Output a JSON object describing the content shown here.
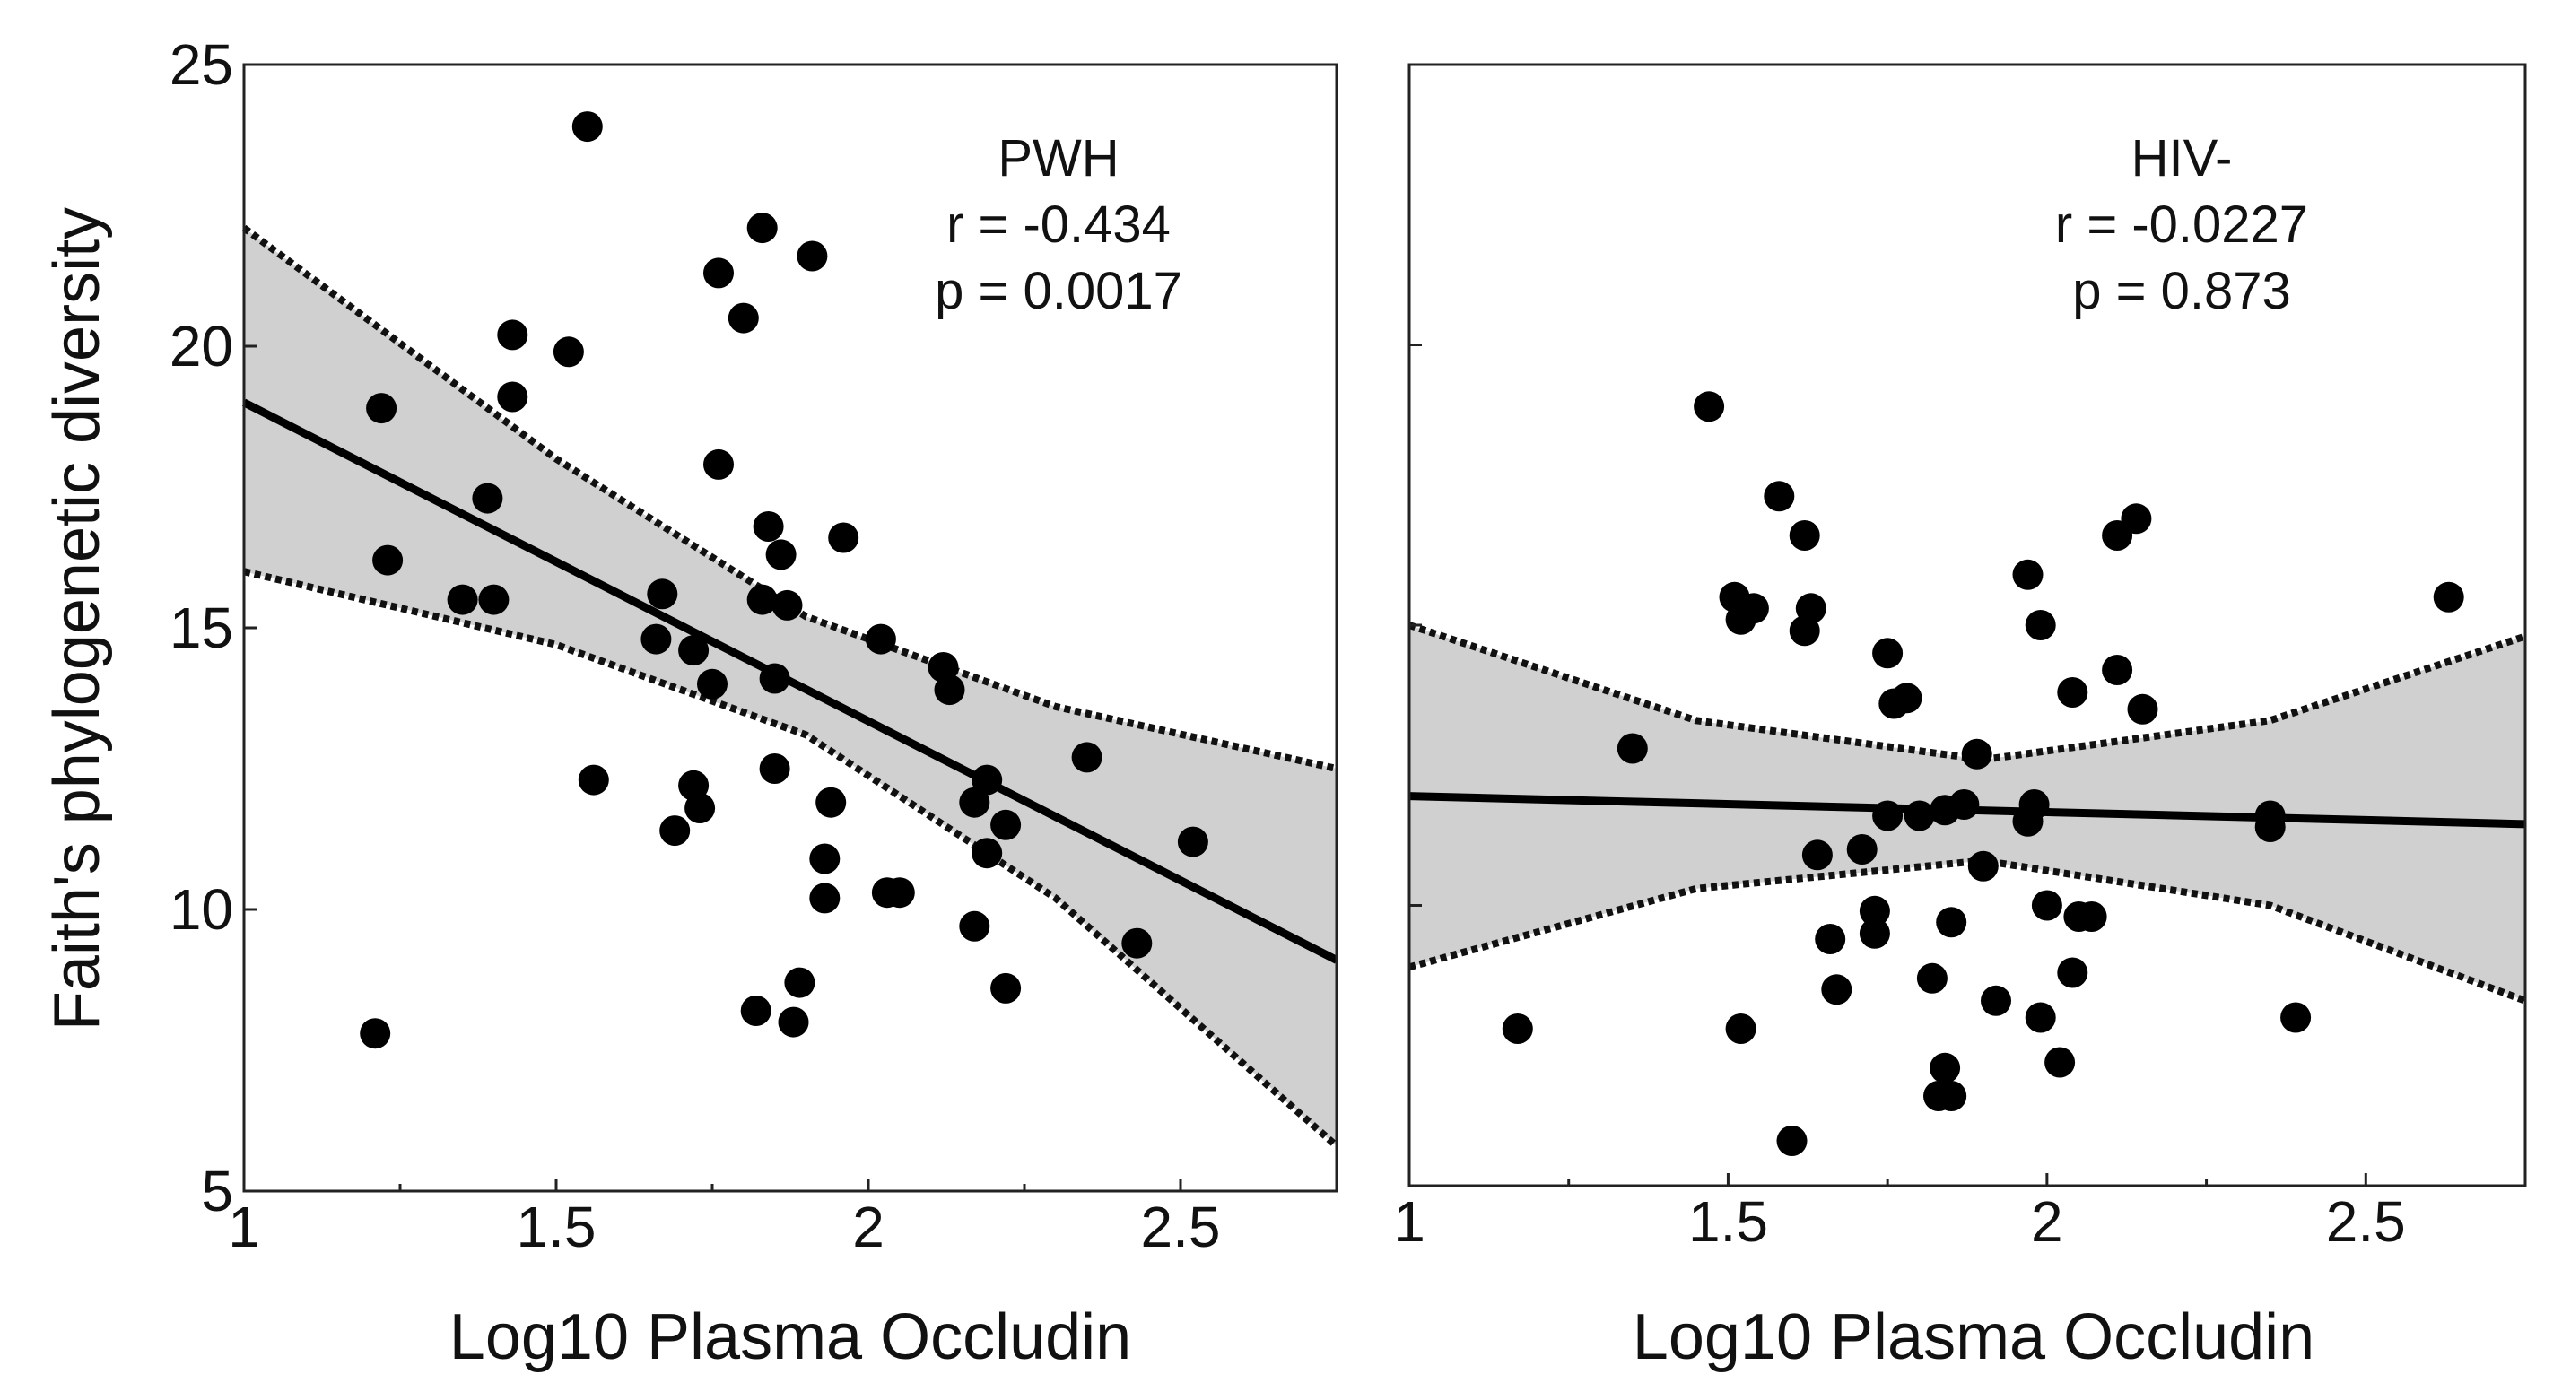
{
  "chart_data": [
    {
      "type": "scatter",
      "panel": "left",
      "group_label": "PWH",
      "stat_r": "r = -0.434",
      "stat_p": "p = 0.0017",
      "xlabel": "Log10 Plasma Occludin",
      "ylabel": "Faith's phylogenetic diversity",
      "xlim": [
        1,
        2.75
      ],
      "ylim": [
        5,
        25
      ],
      "xticks": [
        1,
        1.5,
        2,
        2.5
      ],
      "xtick_labels": [
        "1",
        "1.5",
        "2",
        "2.5"
      ],
      "yticks": [
        5,
        10,
        15,
        20,
        25
      ],
      "ytick_labels": [
        "5",
        "10",
        "15",
        "20",
        "25"
      ],
      "fit": {
        "x": [
          1,
          2.75
        ],
        "y": [
          19.0,
          9.1
        ]
      },
      "ci_upper": {
        "x": [
          1,
          1.5,
          1.9,
          2.3,
          2.75
        ],
        "y": [
          22.1,
          18.0,
          15.2,
          13.6,
          12.5
        ]
      },
      "ci_lower": {
        "x": [
          1,
          1.5,
          1.9,
          2.3,
          2.75
        ],
        "y": [
          16.0,
          14.7,
          13.1,
          10.2,
          5.8
        ]
      },
      "points": [
        [
          1.22,
          18.9
        ],
        [
          1.23,
          16.2
        ],
        [
          1.21,
          7.8
        ],
        [
          1.35,
          15.5
        ],
        [
          1.39,
          17.3
        ],
        [
          1.4,
          15.5
        ],
        [
          1.43,
          20.2
        ],
        [
          1.43,
          19.1
        ],
        [
          1.52,
          19.9
        ],
        [
          1.55,
          23.9
        ],
        [
          1.56,
          12.3
        ],
        [
          1.67,
          15.6
        ],
        [
          1.66,
          14.8
        ],
        [
          1.69,
          11.4
        ],
        [
          1.72,
          14.6
        ],
        [
          1.72,
          12.2
        ],
        [
          1.73,
          11.8
        ],
        [
          1.75,
          14.0
        ],
        [
          1.76,
          17.9
        ],
        [
          1.76,
          21.3
        ],
        [
          1.8,
          20.5
        ],
        [
          1.82,
          8.2
        ],
        [
          1.83,
          22.1
        ],
        [
          1.83,
          15.5
        ],
        [
          1.84,
          16.8
        ],
        [
          1.85,
          14.1
        ],
        [
          1.85,
          12.5
        ],
        [
          1.86,
          16.3
        ],
        [
          1.87,
          15.4
        ],
        [
          1.88,
          8.0
        ],
        [
          1.89,
          8.7
        ],
        [
          1.91,
          21.6
        ],
        [
          1.93,
          10.9
        ],
        [
          1.94,
          11.9
        ],
        [
          1.93,
          10.2
        ],
        [
          1.96,
          16.6
        ],
        [
          2.02,
          14.8
        ],
        [
          2.03,
          10.3
        ],
        [
          2.05,
          10.3
        ],
        [
          2.12,
          14.3
        ],
        [
          2.13,
          13.9
        ],
        [
          2.17,
          9.7
        ],
        [
          2.17,
          11.9
        ],
        [
          2.19,
          12.3
        ],
        [
          2.19,
          11.0
        ],
        [
          2.22,
          11.5
        ],
        [
          2.22,
          8.6
        ],
        [
          2.35,
          12.7
        ],
        [
          2.43,
          9.4
        ],
        [
          2.52,
          11.2
        ]
      ]
    },
    {
      "type": "scatter",
      "panel": "right",
      "group_label": "HIV-",
      "stat_r": "r = -0.0227",
      "stat_p": "p = 0.873",
      "xlabel": "Log10 Plasma Occludin",
      "ylabel": "",
      "xlim": [
        1,
        2.75
      ],
      "ylim": [
        5,
        25
      ],
      "xticks": [
        1,
        1.5,
        2,
        2.5
      ],
      "xtick_labels": [
        "1",
        "1.5",
        "2",
        "2.5"
      ],
      "yticks": [
        5,
        10,
        15,
        20,
        25
      ],
      "ytick_labels": [],
      "fit": {
        "x": [
          1,
          2.75
        ],
        "y": [
          11.95,
          11.45
        ]
      },
      "ci_upper": {
        "x": [
          1,
          1.45,
          1.9,
          2.35,
          2.75
        ],
        "y": [
          15.0,
          13.3,
          12.6,
          13.3,
          14.8
        ]
      },
      "ci_lower": {
        "x": [
          1,
          1.45,
          1.9,
          2.35,
          2.75
        ],
        "y": [
          8.9,
          10.3,
          10.8,
          10.0,
          8.3
        ]
      },
      "points": [
        [
          1.17,
          7.8
        ],
        [
          1.35,
          12.8
        ],
        [
          1.47,
          18.9
        ],
        [
          1.51,
          15.5
        ],
        [
          1.52,
          15.1
        ],
        [
          1.54,
          15.3
        ],
        [
          1.52,
          7.8
        ],
        [
          1.58,
          17.3
        ],
        [
          1.6,
          5.8
        ],
        [
          1.62,
          16.6
        ],
        [
          1.62,
          14.9
        ],
        [
          1.63,
          15.3
        ],
        [
          1.64,
          10.9
        ],
        [
          1.66,
          9.4
        ],
        [
          1.67,
          8.5
        ],
        [
          1.71,
          11.0
        ],
        [
          1.73,
          9.9
        ],
        [
          1.73,
          9.5
        ],
        [
          1.75,
          11.6
        ],
        [
          1.75,
          14.5
        ],
        [
          1.76,
          13.6
        ],
        [
          1.78,
          13.7
        ],
        [
          1.8,
          11.6
        ],
        [
          1.82,
          8.7
        ],
        [
          1.83,
          6.6
        ],
        [
          1.84,
          7.1
        ],
        [
          1.84,
          11.7
        ],
        [
          1.85,
          9.7
        ],
        [
          1.85,
          6.6
        ],
        [
          1.87,
          11.8
        ],
        [
          1.89,
          12.7
        ],
        [
          1.9,
          10.7
        ],
        [
          1.92,
          8.3
        ],
        [
          1.97,
          15.9
        ],
        [
          1.97,
          11.5
        ],
        [
          1.98,
          11.8
        ],
        [
          1.99,
          15.0
        ],
        [
          1.99,
          8.0
        ],
        [
          2.0,
          10.0
        ],
        [
          2.02,
          7.2
        ],
        [
          2.04,
          8.8
        ],
        [
          2.04,
          13.8
        ],
        [
          2.05,
          9.8
        ],
        [
          2.07,
          9.8
        ],
        [
          2.11,
          16.6
        ],
        [
          2.11,
          14.2
        ],
        [
          2.14,
          16.9
        ],
        [
          2.15,
          13.5
        ],
        [
          2.35,
          11.6
        ],
        [
          2.35,
          11.4
        ],
        [
          2.39,
          8.0
        ],
        [
          2.63,
          15.5
        ]
      ]
    }
  ]
}
